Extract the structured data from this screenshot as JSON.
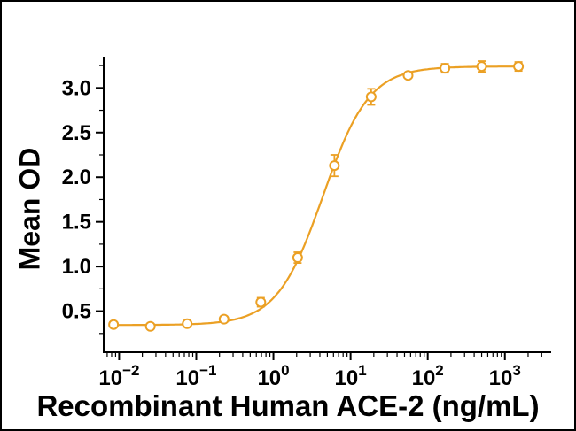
{
  "figure": {
    "background": "#ffffff",
    "border_color": "#000000"
  },
  "chart_data": {
    "type": "scatter",
    "title": "",
    "xlabel": "Recombinant Human ACE-2 (ng/mL)",
    "ylabel": "Mean OD",
    "xscale": "log",
    "grid": false,
    "legend": null,
    "marker": "open-circle",
    "error_bars": true,
    "color": "#EBA024",
    "axis_color": "#000000",
    "x": [
      0.00847,
      0.0254,
      0.0762,
      0.229,
      0.686,
      2.06,
      6.17,
      18.5,
      55.6,
      167,
      500,
      1500
    ],
    "y": [
      0.35,
      0.33,
      0.36,
      0.41,
      0.6,
      1.1,
      2.13,
      2.9,
      3.14,
      3.22,
      3.24,
      3.24
    ],
    "yerr": [
      0.02,
      0.02,
      0.03,
      0.03,
      0.05,
      0.06,
      0.12,
      0.09,
      0.03,
      0.05,
      0.06,
      0.05
    ],
    "x_log_range": [
      -2.2,
      3.6
    ],
    "ylim": [
      0.04,
      3.35
    ],
    "xticks_exponents": [
      -2,
      -1,
      0,
      1,
      2,
      3
    ],
    "yticks": [
      0.5,
      1.0,
      1.5,
      2.0,
      2.5,
      3.0
    ],
    "curve_fit": {
      "model": "4PL",
      "bottom": 0.345,
      "top": 3.24,
      "ec50": 4.4,
      "hill": 1.45,
      "xlog_start": -2.08,
      "xlog_end": 3.18
    }
  }
}
